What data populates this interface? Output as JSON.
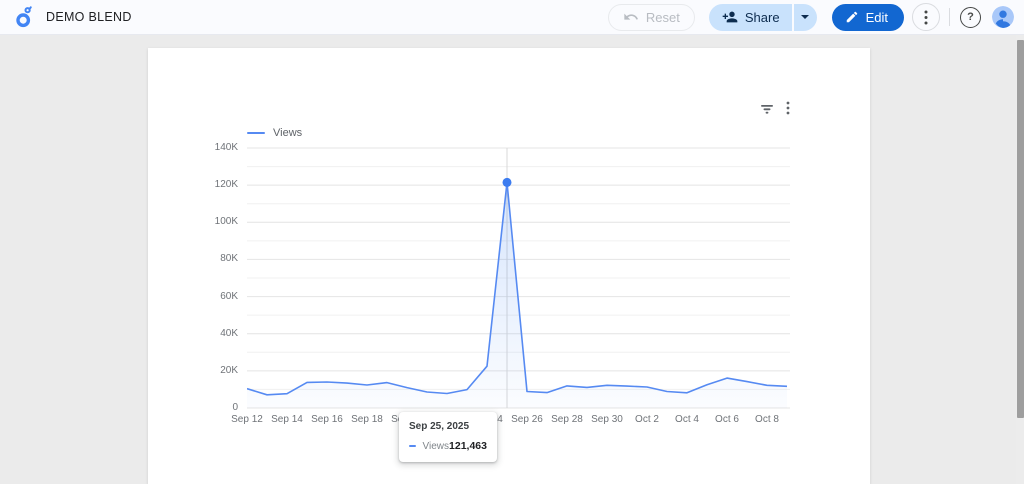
{
  "header": {
    "title": "DEMO BLEND",
    "reset_label": "Reset",
    "share_label": "Share",
    "edit_label": "Edit",
    "help_glyph": "?"
  },
  "icons": {
    "logo": "looker-studio-logo",
    "reset": "undo-arrow",
    "share": "person-add",
    "share_menu": "caret-down",
    "edit": "pencil",
    "more": "kebab-vertical",
    "help": "question-circle",
    "account": "avatar-person",
    "chart_filter": "funnel",
    "chart_more": "kebab-vertical"
  },
  "colors": {
    "edit_button": "#1267d1",
    "share_button": "#c9e2fc",
    "series_line": "#568af2",
    "series_dot": "#3c7cf0",
    "area_fill": "#4285f4",
    "header_bg": "#fafbfe",
    "body_bg": "#ebebeb"
  },
  "chart_data": {
    "type": "line",
    "title": "",
    "legend_position": "top-left",
    "x": [
      "Sep 12",
      "Sep 13",
      "Sep 14",
      "Sep 15",
      "Sep 16",
      "Sep 17",
      "Sep 18",
      "Sep 19",
      "Sep 20",
      "Sep 21",
      "Sep 22",
      "Sep 23",
      "Sep 24",
      "Sep 25",
      "Sep 26",
      "Sep 27",
      "Sep 28",
      "Sep 29",
      "Sep 30",
      "Oct 1",
      "Oct 2",
      "Oct 3",
      "Oct 4",
      "Oct 5",
      "Oct 6",
      "Oct 7",
      "Oct 8",
      "Oct 9"
    ],
    "x_tick_every": 2,
    "series": [
      {
        "name": "Views",
        "color": "#568af2",
        "dot_color": "#3c7cf0",
        "values": [
          10400,
          7100,
          7700,
          13800,
          14000,
          13400,
          12400,
          13700,
          11000,
          8600,
          7800,
          9900,
          22500,
          121463,
          8900,
          8300,
          11900,
          11100,
          12200,
          11800,
          11300,
          8900,
          8200,
          12500,
          16100,
          14200,
          12200,
          11700
        ]
      }
    ],
    "ylim": [
      0,
      140000
    ],
    "grid_interval": 10000,
    "y_ticks": [
      {
        "label": "0",
        "value": 0
      },
      {
        "label": "20K",
        "value": 20000
      },
      {
        "label": "40K",
        "value": 40000
      },
      {
        "label": "60K",
        "value": 60000
      },
      {
        "label": "80K",
        "value": 80000
      },
      {
        "label": "100K",
        "value": 100000
      },
      {
        "label": "120K",
        "value": 120000
      },
      {
        "label": "140K",
        "value": 140000
      }
    ],
    "highlight": {
      "index": 13,
      "x_label": "Sep 25",
      "value": 121463
    }
  },
  "tooltip": {
    "date": "Sep 25, 2025",
    "series": "Views",
    "value": "121,463"
  }
}
